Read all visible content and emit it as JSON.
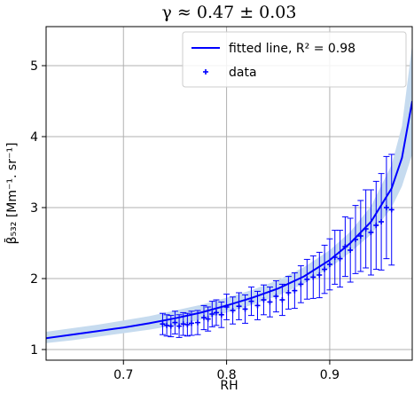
{
  "chart_data": {
    "type": "line",
    "title": "γ ≈ 0.47 ± 0.03",
    "xlabel": "RH",
    "ylabel": "β̄₅₃₂ [Mm⁻¹. sr⁻¹]",
    "xlim": [
      0.625,
      0.98
    ],
    "ylim": [
      0.85,
      5.55
    ],
    "xticks": [
      0.7,
      0.8,
      0.9
    ],
    "yticks": [
      1,
      2,
      3,
      4,
      5
    ],
    "xtick_labels": [
      "0.7",
      "0.8",
      "0.9"
    ],
    "ytick_labels": [
      "1",
      "2",
      "3",
      "4",
      "5"
    ],
    "grid": true,
    "legend_position": "top-right",
    "series": [
      {
        "name": "fitted line, R² = 0.98",
        "kind": "line",
        "color": "#0000ff",
        "band_color": "#c6dbef",
        "x": [
          0.625,
          0.65,
          0.675,
          0.7,
          0.725,
          0.75,
          0.775,
          0.8,
          0.825,
          0.85,
          0.875,
          0.9,
          0.92,
          0.94,
          0.96,
          0.97,
          0.98
        ],
        "y": [
          1.16,
          1.21,
          1.26,
          1.31,
          1.37,
          1.44,
          1.52,
          1.62,
          1.73,
          1.86,
          2.03,
          2.26,
          2.5,
          2.8,
          3.27,
          3.7,
          4.5
        ],
        "band_lower": [
          1.09,
          1.13,
          1.18,
          1.23,
          1.28,
          1.34,
          1.42,
          1.52,
          1.63,
          1.76,
          1.93,
          2.15,
          2.37,
          2.62,
          3.0,
          3.3,
          3.75
        ],
        "band_upper": [
          1.25,
          1.3,
          1.35,
          1.41,
          1.47,
          1.55,
          1.63,
          1.73,
          1.84,
          1.98,
          2.16,
          2.4,
          2.66,
          3.02,
          3.6,
          4.15,
          5.3
        ]
      },
      {
        "name": "data",
        "kind": "scatter",
        "color": "#0000ff",
        "x": [
          0.738,
          0.742,
          0.746,
          0.75,
          0.754,
          0.758,
          0.762,
          0.766,
          0.772,
          0.778,
          0.782,
          0.786,
          0.79,
          0.795,
          0.8,
          0.806,
          0.812,
          0.818,
          0.824,
          0.83,
          0.836,
          0.842,
          0.848,
          0.854,
          0.86,
          0.866,
          0.872,
          0.878,
          0.884,
          0.89,
          0.895,
          0.9,
          0.905,
          0.91,
          0.915,
          0.92,
          0.925,
          0.93,
          0.935,
          0.94,
          0.945,
          0.95,
          0.955,
          0.96
        ],
        "y": [
          1.36,
          1.34,
          1.33,
          1.38,
          1.33,
          1.36,
          1.35,
          1.37,
          1.38,
          1.45,
          1.43,
          1.5,
          1.52,
          1.49,
          1.6,
          1.55,
          1.61,
          1.57,
          1.68,
          1.62,
          1.7,
          1.67,
          1.75,
          1.7,
          1.8,
          1.83,
          1.92,
          1.99,
          2.02,
          2.05,
          2.13,
          2.2,
          2.3,
          2.28,
          2.45,
          2.4,
          2.55,
          2.6,
          2.7,
          2.65,
          2.75,
          2.8,
          3.0,
          2.97
        ],
        "err": [
          0.15,
          0.15,
          0.15,
          0.16,
          0.16,
          0.16,
          0.16,
          0.17,
          0.17,
          0.17,
          0.17,
          0.18,
          0.18,
          0.18,
          0.18,
          0.19,
          0.19,
          0.2,
          0.2,
          0.2,
          0.21,
          0.21,
          0.22,
          0.22,
          0.23,
          0.25,
          0.26,
          0.28,
          0.3,
          0.32,
          0.34,
          0.36,
          0.38,
          0.4,
          0.42,
          0.45,
          0.48,
          0.5,
          0.55,
          0.6,
          0.62,
          0.68,
          0.72,
          0.78
        ]
      }
    ]
  }
}
